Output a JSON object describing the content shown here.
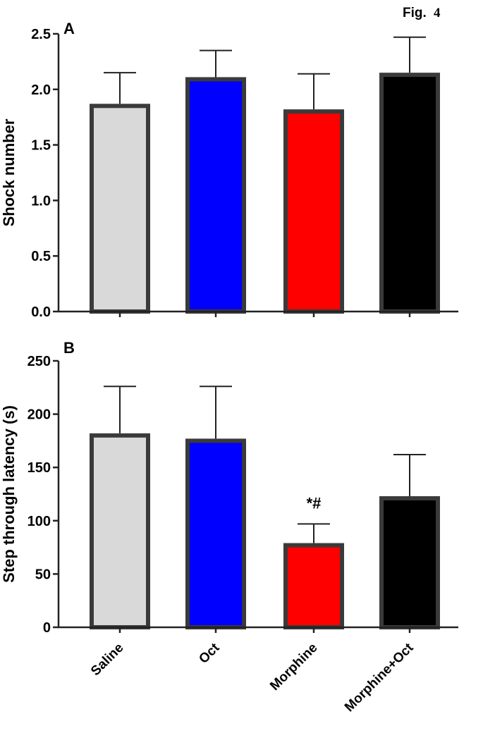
{
  "figure": {
    "label": "Fig.",
    "number": "4"
  },
  "colors": {
    "bar_outline": "#3a3a3a",
    "axis": "#222222"
  },
  "chart_data": [
    {
      "type": "bar",
      "panel": "A",
      "categories": [
        "Saline",
        "Oct",
        "Morphine",
        "Morphine+Oct"
      ],
      "values": [
        1.87,
        2.11,
        1.82,
        2.15
      ],
      "errors": [
        0.28,
        0.24,
        0.32,
        0.32
      ],
      "colors": [
        "#d9d9d9",
        "#0000ff",
        "#ff0000",
        "#000000"
      ],
      "ylabel": "Shock number",
      "ylim": [
        0,
        2.5
      ],
      "yticks": [
        0,
        0.5,
        1.0,
        1.5,
        2.0,
        2.5
      ],
      "ytick_labels": [
        "0.0",
        "0.5",
        "1.0",
        "1.5",
        "2.0",
        "2.5"
      ],
      "annotations": []
    },
    {
      "type": "bar",
      "panel": "B",
      "categories": [
        "Saline",
        "Oct",
        "Morphine",
        "Morphine+Oct"
      ],
      "values": [
        182,
        177,
        79,
        123
      ],
      "errors": [
        44,
        49,
        18,
        39
      ],
      "colors": [
        "#d9d9d9",
        "#0000ff",
        "#ff0000",
        "#000000"
      ],
      "ylabel": "Step through latency (s)",
      "ylim": [
        0,
        250
      ],
      "yticks": [
        0,
        50,
        100,
        150,
        200,
        250
      ],
      "ytick_labels": [
        "0",
        "50",
        "100",
        "150",
        "200",
        "250"
      ],
      "annotations": [
        {
          "category": "Morphine",
          "text": "*#"
        }
      ]
    }
  ]
}
